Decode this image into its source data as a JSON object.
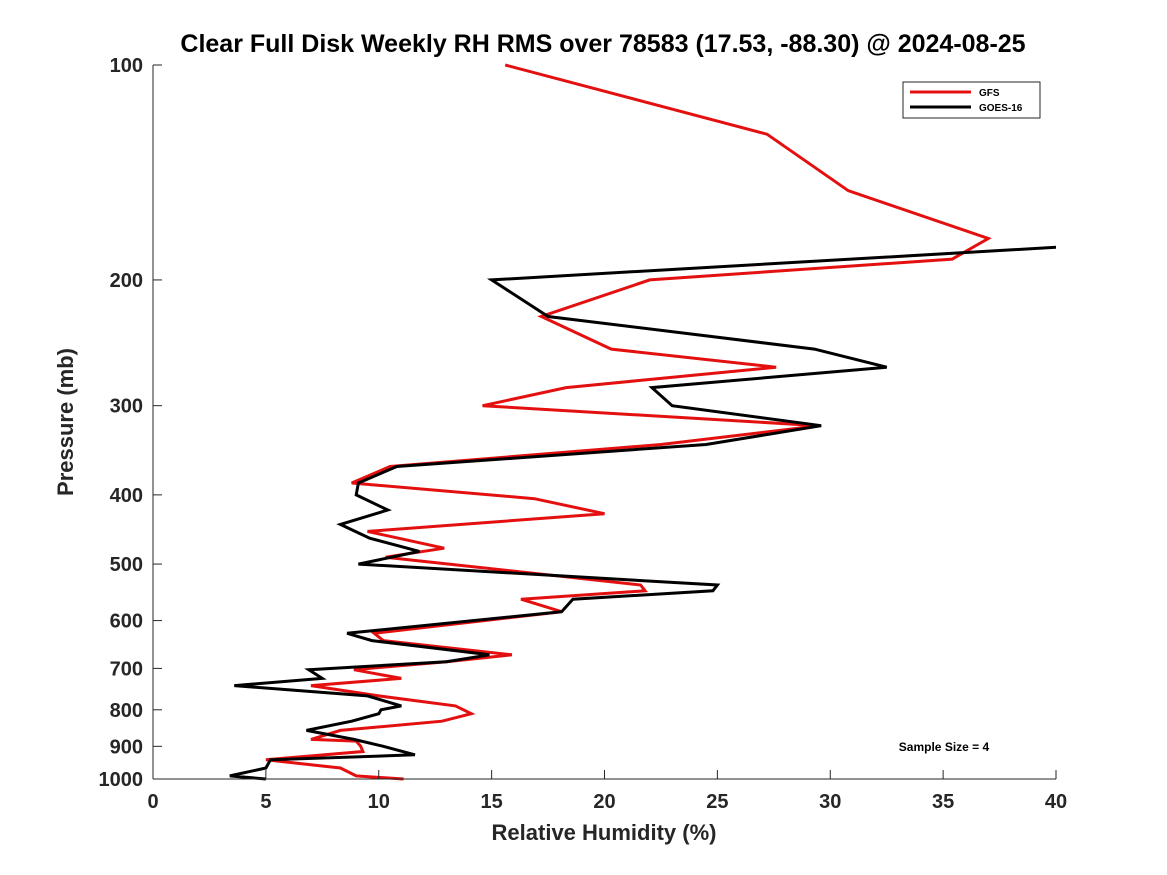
{
  "chart_data": {
    "type": "line",
    "title": "Clear Full Disk Weekly RH RMS over 78583 (17.53, -88.30) @ 2024-08-25",
    "xlabel": "Relative Humidity (%)",
    "ylabel": "Pressure (mb)",
    "xlim": [
      0,
      40
    ],
    "ylim": [
      100,
      1000
    ],
    "y_scale": "log",
    "y_reversed": true,
    "x_ticks": [
      "0",
      "5",
      "10",
      "15",
      "20",
      "25",
      "30",
      "35",
      "40"
    ],
    "y_ticks": [
      "100",
      "200",
      "300",
      "400",
      "500",
      "600",
      "700",
      "800",
      "900",
      "1000"
    ],
    "grid": false,
    "legend_position": "top-right",
    "annotation": "Sample Size = 4",
    "series": [
      {
        "name": "GFS",
        "color": "#e41010",
        "points": [
          [
            15.6,
            100
          ],
          [
            27.2,
            125
          ],
          [
            30.8,
            150
          ],
          [
            37.0,
            175
          ],
          [
            35.4,
            187
          ],
          [
            22,
            200
          ],
          [
            17.2,
            225
          ],
          [
            20.3,
            250
          ],
          [
            27.6,
            265
          ],
          [
            18.3,
            283
          ],
          [
            14.6,
            300
          ],
          [
            29.5,
            320
          ],
          [
            22.5,
            340
          ],
          [
            10.5,
            365
          ],
          [
            8.8,
            385
          ],
          [
            16.9,
            405
          ],
          [
            20.0,
            425
          ],
          [
            9.5,
            450
          ],
          [
            12.9,
            475
          ],
          [
            10.3,
            489
          ],
          [
            21.6,
            535
          ],
          [
            21.8,
            545
          ],
          [
            16.3,
            560
          ],
          [
            18.1,
            583
          ],
          [
            9.8,
            625
          ],
          [
            10.2,
            640
          ],
          [
            15.9,
            670
          ],
          [
            13.0,
            685
          ],
          [
            8.9,
            703
          ],
          [
            11.0,
            723
          ],
          [
            7.0,
            740
          ],
          [
            10.0,
            765
          ],
          [
            13.4,
            790
          ],
          [
            14.1,
            810
          ],
          [
            12.8,
            830
          ],
          [
            8.3,
            855
          ],
          [
            7.0,
            880
          ],
          [
            9.0,
            885
          ],
          [
            9.2,
            900
          ],
          [
            9.3,
            915
          ],
          [
            5.0,
            940
          ],
          [
            8.3,
            965
          ],
          [
            9.0,
            990
          ],
          [
            11.1,
            1000
          ]
        ]
      },
      {
        "name": "GOES-16",
        "color": "#000000",
        "points": [
          [
            40.0,
            180
          ],
          [
            15.0,
            200
          ],
          [
            17.5,
            225
          ],
          [
            29.3,
            250
          ],
          [
            32.5,
            265
          ],
          [
            22.1,
            283
          ],
          [
            23.0,
            300
          ],
          [
            29.6,
            320
          ],
          [
            24.5,
            340
          ],
          [
            10.8,
            365
          ],
          [
            9.1,
            385
          ],
          [
            9.0,
            400
          ],
          [
            10.4,
            420
          ],
          [
            8.3,
            440
          ],
          [
            9.6,
            460
          ],
          [
            11.8,
            480
          ],
          [
            9.1,
            500
          ],
          [
            25.0,
            535
          ],
          [
            24.8,
            545
          ],
          [
            18.6,
            560
          ],
          [
            18.1,
            583
          ],
          [
            8.6,
            625
          ],
          [
            9.7,
            640
          ],
          [
            14.9,
            670
          ],
          [
            13.0,
            685
          ],
          [
            6.9,
            703
          ],
          [
            7.5,
            723
          ],
          [
            3.6,
            740
          ],
          [
            9.5,
            765
          ],
          [
            11.0,
            790
          ],
          [
            10.1,
            800
          ],
          [
            10.0,
            810
          ],
          [
            8.8,
            830
          ],
          [
            6.8,
            855
          ],
          [
            8.9,
            880
          ],
          [
            10.2,
            900
          ],
          [
            11.6,
            925
          ],
          [
            5.2,
            940
          ],
          [
            5.0,
            965
          ],
          [
            3.4,
            990
          ],
          [
            5.0,
            1000
          ]
        ]
      }
    ]
  }
}
